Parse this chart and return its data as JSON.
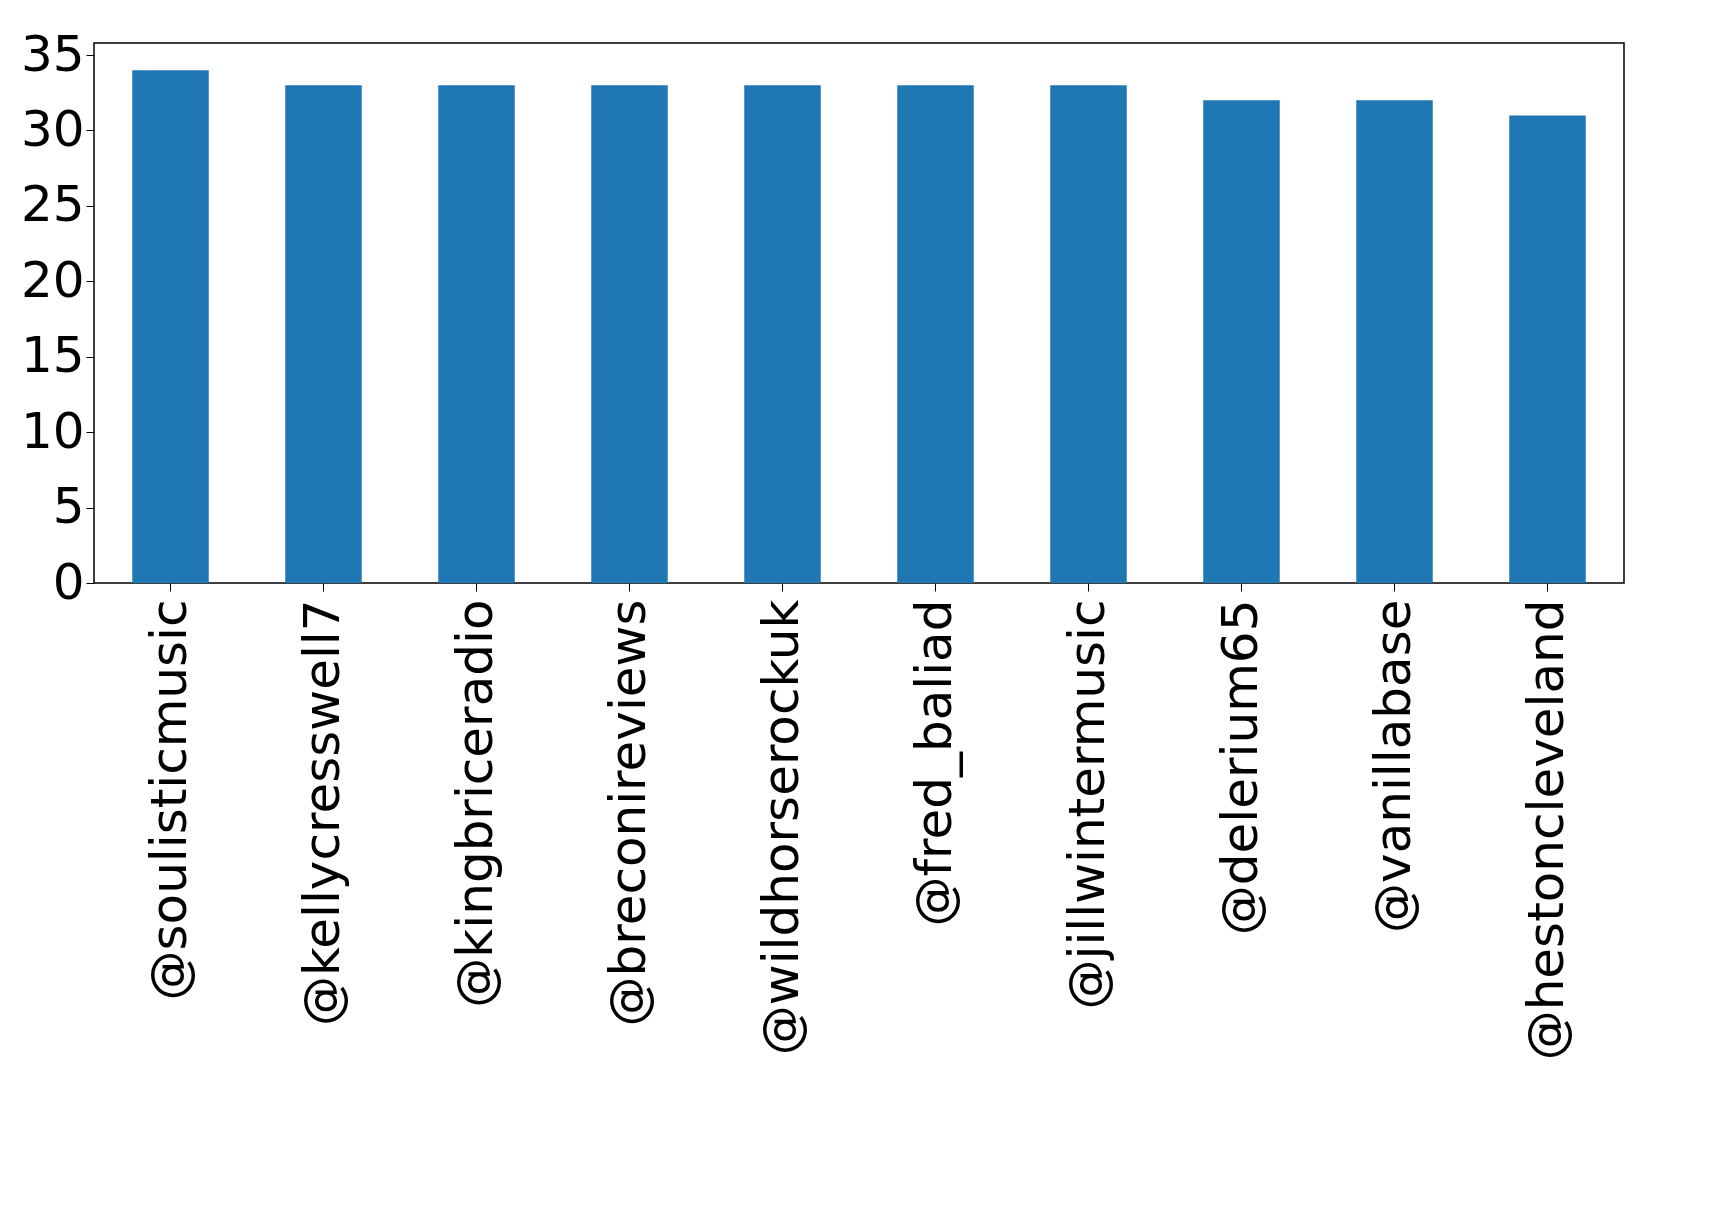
{
  "chart_data": {
    "type": "bar",
    "categories": [
      "@soulisticmusic",
      "@kellycresswell7",
      "@kingbriceradio",
      "@breconireviews",
      "@wildhorserockuk",
      "@fred_baliad",
      "@jillwintermusic",
      "@delerium65",
      "@vanillabase",
      "@hestoncleveland"
    ],
    "values": [
      34,
      33,
      33,
      33,
      33,
      33,
      33,
      32,
      32,
      31
    ],
    "color": "#1f77b4",
    "ylim": [
      0,
      35.8
    ],
    "yticks": [
      0,
      5,
      10,
      15,
      20,
      25,
      30,
      35
    ],
    "grid": false
  }
}
